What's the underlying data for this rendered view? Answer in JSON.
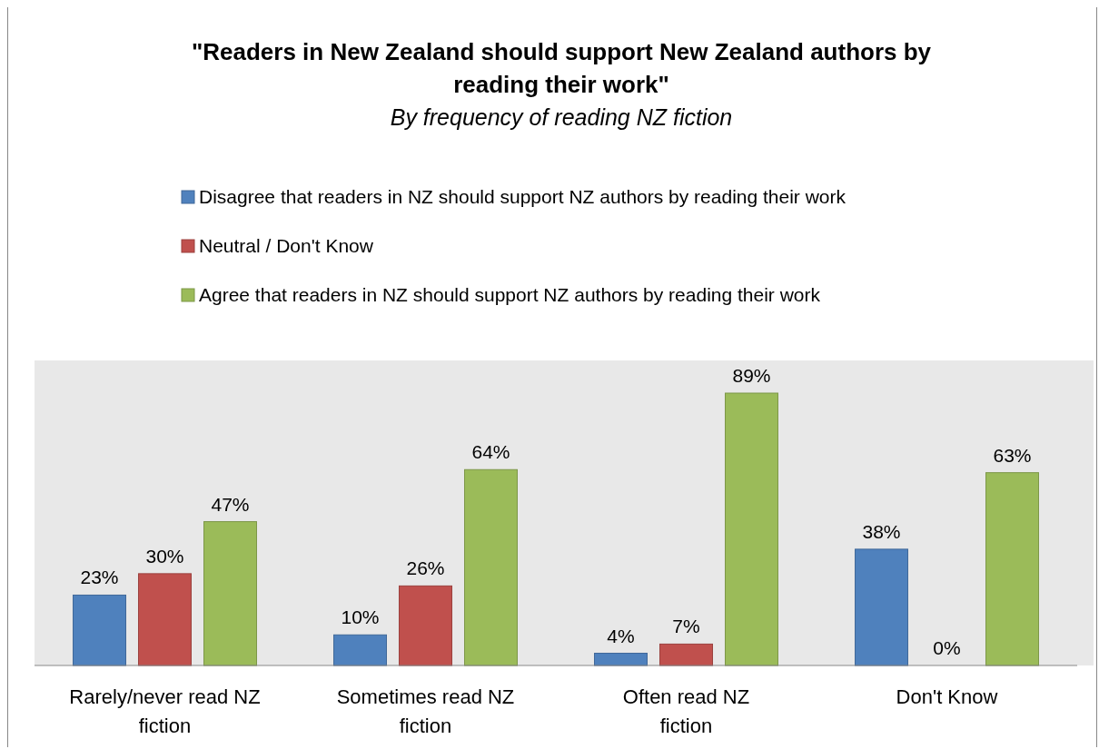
{
  "chart_data": {
    "type": "bar",
    "title": "\"Readers in New Zealand should support New Zealand authors by reading their work\"",
    "subtitle": "By frequency of reading NZ fiction",
    "categories": [
      "Rarely/never read NZ fiction",
      "Sometimes read NZ fiction",
      "Often read NZ fiction",
      "Don't Know"
    ],
    "series": [
      {
        "name": "Disagree that readers in NZ should support NZ authors by reading their work",
        "color": "#4f81bd",
        "values": [
          23,
          10,
          4,
          38
        ],
        "value_labels": [
          "23%",
          "10%",
          "4%",
          "38%"
        ]
      },
      {
        "name": "Neutral / Don't Know",
        "color": "#c0504d",
        "values": [
          30,
          26,
          7,
          0
        ],
        "value_labels": [
          "30%",
          "26%",
          "7%",
          "0%"
        ]
      },
      {
        "name": "Agree that readers in NZ should support NZ authors by reading their work",
        "color": "#9bbb59",
        "values": [
          47,
          64,
          89,
          63
        ],
        "value_labels": [
          "47%",
          "64%",
          "89%",
          "63%"
        ]
      }
    ],
    "tick_labels": "x",
    "legend": "top"
  }
}
